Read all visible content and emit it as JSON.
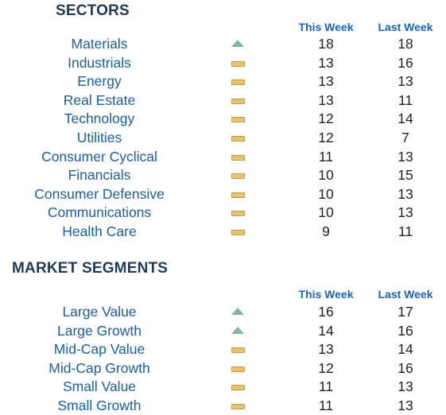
{
  "sectors": {
    "title": "SECTORS",
    "col_this": "This Week",
    "col_last": "Last Week",
    "rows": [
      {
        "name": "Materials",
        "trend": "up",
        "this": "18",
        "last": "18"
      },
      {
        "name": "Industrials",
        "trend": "flat",
        "this": "13",
        "last": "16"
      },
      {
        "name": "Energy",
        "trend": "flat",
        "this": "13",
        "last": "13"
      },
      {
        "name": "Real Estate",
        "trend": "flat",
        "this": "13",
        "last": "11"
      },
      {
        "name": "Technology",
        "trend": "flat",
        "this": "12",
        "last": "14"
      },
      {
        "name": "Utilities",
        "trend": "flat",
        "this": "12",
        "last": "7"
      },
      {
        "name": "Consumer Cyclical",
        "trend": "flat",
        "this": "11",
        "last": "13"
      },
      {
        "name": "Financials",
        "trend": "flat",
        "this": "10",
        "last": "15"
      },
      {
        "name": "Consumer Defensive",
        "trend": "flat",
        "this": "10",
        "last": "13"
      },
      {
        "name": "Communications",
        "trend": "flat",
        "this": "10",
        "last": "13"
      },
      {
        "name": "Health Care",
        "trend": "flat",
        "this": "9",
        "last": "11"
      }
    ]
  },
  "segments": {
    "title": "MARKET SEGMENTS",
    "col_this": "This Week",
    "col_last": "Last Week",
    "rows": [
      {
        "name": "Large Value",
        "trend": "up",
        "this": "16",
        "last": "17"
      },
      {
        "name": "Large Growth",
        "trend": "up",
        "this": "14",
        "last": "16"
      },
      {
        "name": "Mid-Cap Value",
        "trend": "flat",
        "this": "13",
        "last": "14"
      },
      {
        "name": "Mid-Cap Growth",
        "trend": "flat",
        "this": "12",
        "last": "16"
      },
      {
        "name": "Small Value",
        "trend": "flat",
        "this": "11",
        "last": "13"
      },
      {
        "name": "Small Growth",
        "trend": "flat",
        "this": "11",
        "last": "13"
      }
    ]
  },
  "colors": {
    "up": "#7fb89a",
    "flat": "#e9c46a",
    "name_text": "#1a5ea8",
    "header_text": "#1f3b5c",
    "col_header_text": "#1565c0"
  },
  "icons": {
    "up": "up-triangle-icon",
    "flat": "flat-bar-icon"
  }
}
